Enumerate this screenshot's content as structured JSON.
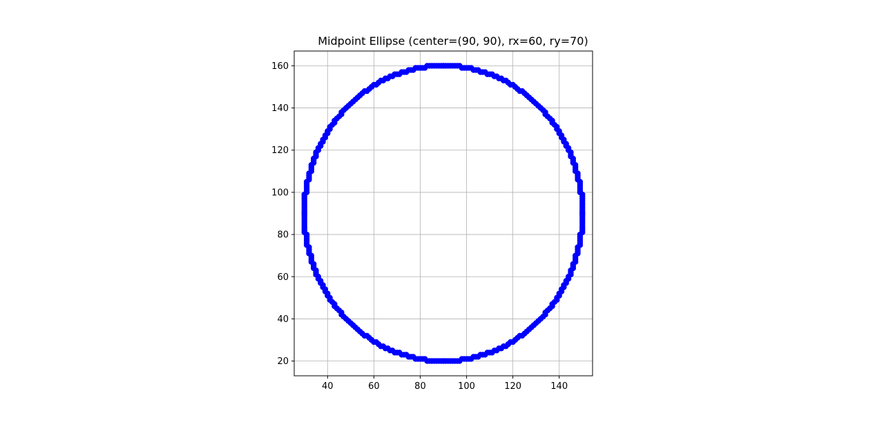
{
  "chart_data": {
    "type": "scatter",
    "title": "Midpoint Ellipse (center=(90, 90), rx=60, ry=70)",
    "xlabel": "",
    "ylabel": "",
    "xlim": [
      25.6,
      154.4
    ],
    "ylim": [
      13.0,
      167.0
    ],
    "xticks": [
      40,
      60,
      80,
      100,
      120,
      140
    ],
    "yticks": [
      20,
      40,
      60,
      80,
      100,
      120,
      140,
      160
    ],
    "grid": true,
    "aspect": "equal",
    "center": [
      90,
      90
    ],
    "rx": 60,
    "ry": 70,
    "series": [
      {
        "color": "#0000ff",
        "marker": "circle",
        "line": true,
        "generator": "midpoint-ellipse"
      }
    ]
  }
}
